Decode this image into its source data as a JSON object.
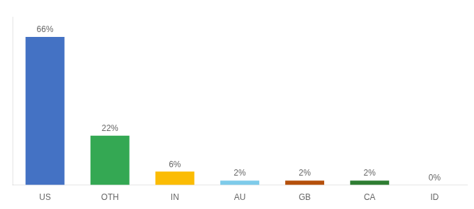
{
  "chart_data": {
    "type": "bar",
    "categories": [
      "US",
      "OTH",
      "IN",
      "AU",
      "GB",
      "CA",
      "ID"
    ],
    "values": [
      66,
      22,
      6,
      2,
      2,
      2,
      0
    ],
    "value_labels": [
      "66%",
      "22%",
      "6%",
      "2%",
      "2%",
      "2%",
      "0%"
    ],
    "colors": [
      "#4472c4",
      "#34a853",
      "#fbbc04",
      "#7ecbea",
      "#b5500c",
      "#2e7d32",
      "#c8c8c8"
    ],
    "ylim": [
      0,
      75
    ],
    "tick_labels": "x",
    "grid": false,
    "data_labels": true
  }
}
